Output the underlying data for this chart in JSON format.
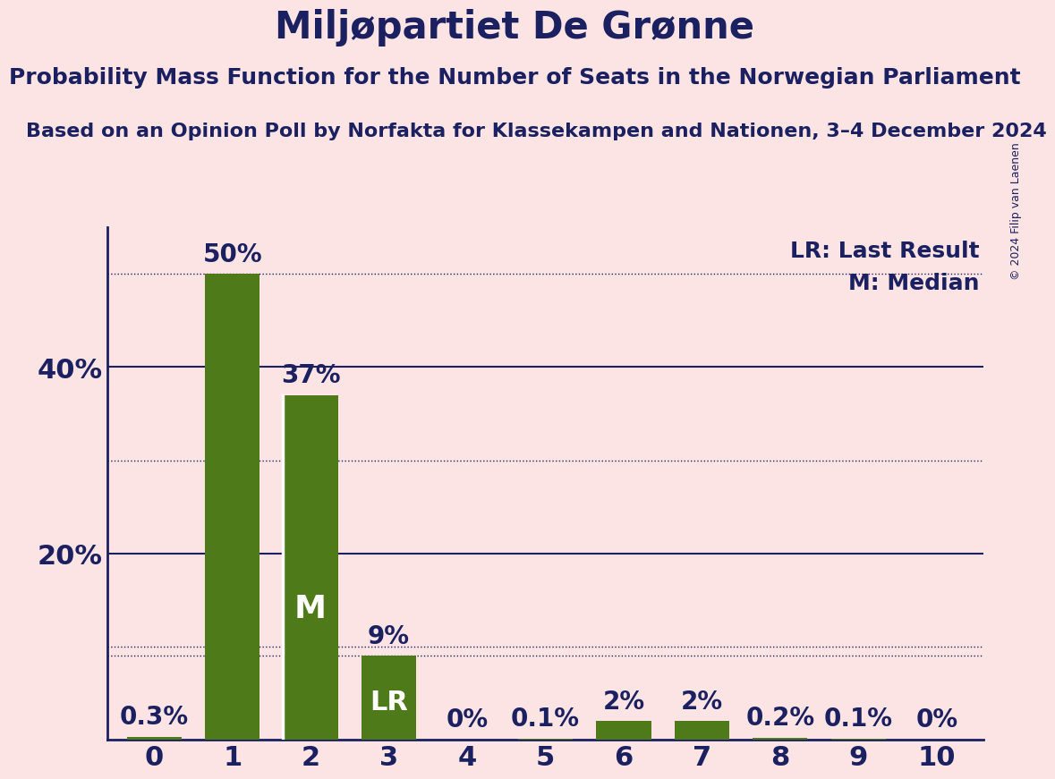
{
  "title": "Miljøpartiet De Grønne",
  "subtitle": "Probability Mass Function for the Number of Seats in the Norwegian Parliament",
  "source_line": "Based on an Opinion Poll by Norfakta for Klassekampen and Nationen, 3–4 December 2024",
  "copyright": "© 2024 Filip van Laenen",
  "categories": [
    0,
    1,
    2,
    3,
    4,
    5,
    6,
    7,
    8,
    9,
    10
  ],
  "values": [
    0.3,
    50.0,
    37.0,
    9.0,
    0.0,
    0.1,
    2.0,
    2.0,
    0.2,
    0.1,
    0.0
  ],
  "bar_color": "#4f7a1a",
  "background_color": "#fce4e4",
  "text_color": "#1a2060",
  "label_texts": [
    "0.3%",
    "50%",
    "37%",
    "9%",
    "0%",
    "0.1%",
    "2%",
    "2%",
    "0.2%",
    "0.1%",
    "0%"
  ],
  "median_bar": 2,
  "lr_bar": 3,
  "median_label": "M",
  "lr_label": "LR",
  "legend_lr": "LR: Last Result",
  "legend_m": "M: Median",
  "yticks": [
    0,
    20,
    40
  ],
  "ytick_labels": [
    "",
    "20%",
    "40%"
  ],
  "ylim": [
    0,
    55
  ],
  "solid_gridlines": [
    20,
    40
  ],
  "dotted_gridlines": [
    10,
    30,
    50
  ],
  "lr_hline": 9.0,
  "title_fontsize": 30,
  "subtitle_fontsize": 18,
  "source_fontsize": 16,
  "axis_label_fontsize": 22,
  "bar_label_fontsize": 20,
  "inner_label_fontsize": 22,
  "legend_fontsize": 18,
  "copyright_fontsize": 9
}
